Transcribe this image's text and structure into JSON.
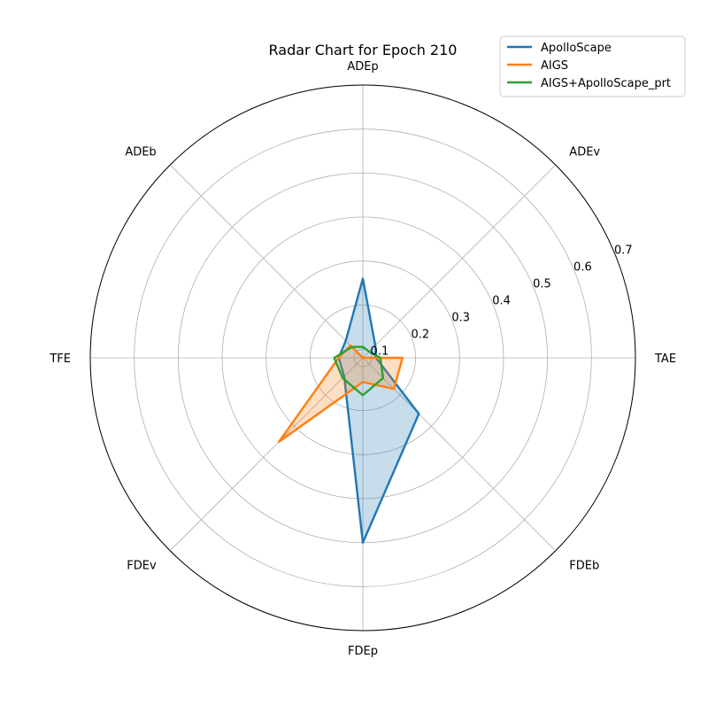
{
  "chart_data": {
    "type": "radar",
    "title": "Radar Chart for Epoch 210",
    "axes": [
      "ADEp",
      "ADEv",
      "TAE",
      "FDEb",
      "FDEp",
      "FDEv",
      "TFE",
      "ADEb"
    ],
    "rticks": [
      "0.1",
      "0.2",
      "0.3",
      "0.4",
      "0.5",
      "0.6",
      "0.7"
    ],
    "rlim": [
      0.08,
      0.7
    ],
    "grid": true,
    "legend_position": "top-right",
    "series": [
      {
        "name": "ApolloScape",
        "color": "#1f77b4",
        "filled": true,
        "values": [
          0.26,
          0.12,
          0.11,
          0.26,
          0.5,
          0.14,
          0.135,
          0.135
        ]
      },
      {
        "name": "AIGS",
        "color": "#ff7f0e",
        "filled": true,
        "values": [
          0.08,
          0.08,
          0.17,
          0.18,
          0.135,
          0.35,
          0.135,
          0.12
        ]
      },
      {
        "name": "AIGS+ApolloScape_prt",
        "color": "#2ca02c",
        "filled": false,
        "values": [
          0.105,
          0.1,
          0.12,
          0.145,
          0.165,
          0.145,
          0.145,
          0.115
        ]
      }
    ]
  }
}
